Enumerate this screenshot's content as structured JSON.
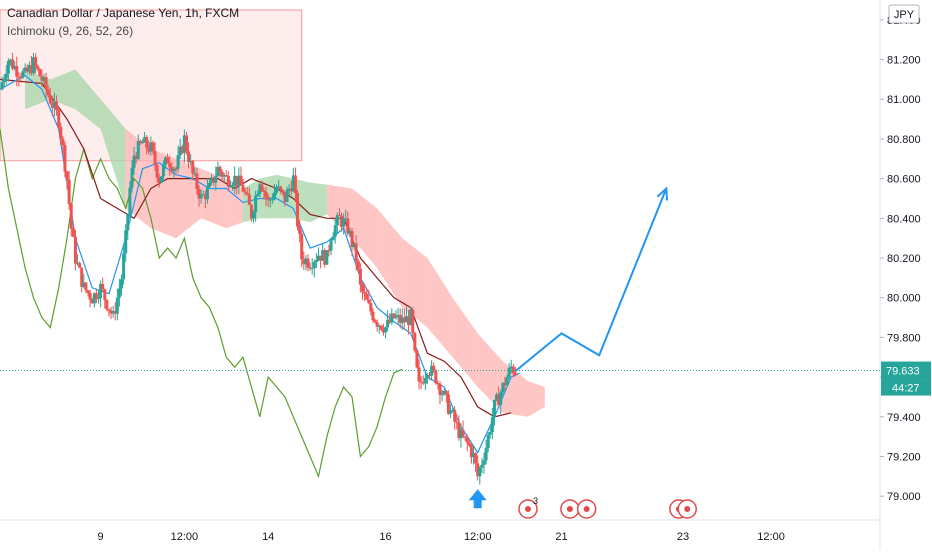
{
  "header": {
    "title": "Canadian Dollar / Japanese Yen, 1h, FXCM",
    "indicator": "Ichimoku (9, 26, 52, 26)"
  },
  "colors": {
    "bull": "#26a69a",
    "bear": "#ef5350",
    "tenkan": "#2196f3",
    "kijun": "#8b1a1a",
    "chikou": "#5a9e2f",
    "cloud_bull": "#a5d6a7",
    "cloud_bear": "#ffb3b3",
    "projection": "#2196f3",
    "price_tag": "#26a69a"
  },
  "chart_data": {
    "type": "candlestick",
    "currency": "JPY",
    "ylim": [
      78.88,
      81.5
    ],
    "y_ticks": [
      "81.400",
      "81.200",
      "81.000",
      "80.800",
      "80.600",
      "80.400",
      "80.200",
      "80.000",
      "79.800",
      "79.600",
      "79.400",
      "79.200",
      "79.000"
    ],
    "y_tick_values": [
      81.4,
      81.2,
      81.0,
      80.8,
      80.6,
      80.4,
      80.2,
      80.0,
      79.8,
      79.6,
      79.4,
      79.2,
      79.0
    ],
    "x_range": [
      0,
      210
    ],
    "x_ticks": [
      {
        "label": "9",
        "x": 24
      },
      {
        "label": "12:00",
        "x": 44
      },
      {
        "label": "14",
        "x": 64
      },
      {
        "label": "16",
        "x": 92
      },
      {
        "label": "12:00",
        "x": 114
      },
      {
        "label": "21",
        "x": 134
      },
      {
        "label": "23",
        "x": 163
      },
      {
        "label": "12:00",
        "x": 184
      }
    ],
    "last_price": "79.633",
    "last_price_value": 79.633,
    "countdown": "44:27",
    "price_path": [
      [
        0,
        81.05
      ],
      [
        2,
        81.2
      ],
      [
        4,
        81.15
      ],
      [
        6,
        81.12
      ],
      [
        8,
        81.18
      ],
      [
        10,
        81.1
      ],
      [
        12,
        81.0
      ],
      [
        14,
        80.9
      ],
      [
        16,
        80.6
      ],
      [
        17,
        80.35
      ],
      [
        18,
        80.2
      ],
      [
        20,
        80.05
      ],
      [
        22,
        80.0
      ],
      [
        24,
        80.05
      ],
      [
        26,
        79.95
      ],
      [
        27,
        79.9
      ],
      [
        29,
        80.1
      ],
      [
        30,
        80.3
      ],
      [
        31,
        80.55
      ],
      [
        32,
        80.72
      ],
      [
        34,
        80.78
      ],
      [
        36,
        80.75
      ],
      [
        38,
        80.6
      ],
      [
        40,
        80.7
      ],
      [
        42,
        80.65
      ],
      [
        44,
        80.8
      ],
      [
        46,
        80.62
      ],
      [
        48,
        80.5
      ],
      [
        50,
        80.55
      ],
      [
        52,
        80.65
      ],
      [
        54,
        80.6
      ],
      [
        56,
        80.6
      ],
      [
        58,
        80.55
      ],
      [
        60,
        80.42
      ],
      [
        62,
        80.6
      ],
      [
        64,
        80.48
      ],
      [
        66,
        80.55
      ],
      [
        68,
        80.5
      ],
      [
        70,
        80.6
      ],
      [
        71,
        80.38
      ],
      [
        72,
        80.2
      ],
      [
        74,
        80.18
      ],
      [
        76,
        80.22
      ],
      [
        78,
        80.2
      ],
      [
        79,
        80.32
      ],
      [
        81,
        80.4
      ],
      [
        83,
        80.35
      ],
      [
        85,
        80.2
      ],
      [
        86,
        80.05
      ],
      [
        88,
        79.95
      ],
      [
        90,
        79.88
      ],
      [
        92,
        79.85
      ],
      [
        94,
        79.9
      ],
      [
        96,
        79.88
      ],
      [
        98,
        79.9
      ],
      [
        99,
        79.7
      ],
      [
        100,
        79.55
      ],
      [
        102,
        79.65
      ],
      [
        104,
        79.6
      ],
      [
        106,
        79.5
      ],
      [
        108,
        79.4
      ],
      [
        110,
        79.3
      ],
      [
        112,
        79.25
      ],
      [
        113,
        79.2
      ],
      [
        114,
        79.1
      ],
      [
        116,
        79.25
      ],
      [
        117,
        79.35
      ],
      [
        118,
        79.45
      ],
      [
        120,
        79.55
      ],
      [
        122,
        79.65
      ],
      [
        123,
        79.63
      ]
    ],
    "tenkan": [
      [
        0,
        81.05
      ],
      [
        6,
        81.12
      ],
      [
        10,
        81.05
      ],
      [
        14,
        80.85
      ],
      [
        18,
        80.3
      ],
      [
        22,
        80.05
      ],
      [
        26,
        80.02
      ],
      [
        30,
        80.3
      ],
      [
        34,
        80.65
      ],
      [
        38,
        80.68
      ],
      [
        42,
        80.62
      ],
      [
        46,
        80.6
      ],
      [
        50,
        80.55
      ],
      [
        54,
        80.55
      ],
      [
        58,
        80.48
      ],
      [
        62,
        80.5
      ],
      [
        66,
        80.5
      ],
      [
        70,
        80.45
      ],
      [
        74,
        80.25
      ],
      [
        78,
        80.28
      ],
      [
        82,
        80.35
      ],
      [
        86,
        80.1
      ],
      [
        90,
        79.95
      ],
      [
        94,
        79.88
      ],
      [
        98,
        79.82
      ],
      [
        102,
        79.6
      ],
      [
        106,
        79.55
      ],
      [
        110,
        79.35
      ],
      [
        114,
        79.22
      ],
      [
        118,
        79.4
      ],
      [
        122,
        79.6
      ],
      [
        124,
        79.62
      ]
    ],
    "kijun": [
      [
        0,
        81.1
      ],
      [
        10,
        81.08
      ],
      [
        16,
        80.9
      ],
      [
        20,
        80.75
      ],
      [
        24,
        80.5
      ],
      [
        28,
        80.45
      ],
      [
        32,
        80.4
      ],
      [
        36,
        80.55
      ],
      [
        40,
        80.6
      ],
      [
        46,
        80.6
      ],
      [
        52,
        80.6
      ],
      [
        56,
        80.55
      ],
      [
        60,
        80.6
      ],
      [
        66,
        80.55
      ],
      [
        70,
        80.5
      ],
      [
        74,
        80.42
      ],
      [
        78,
        80.4
      ],
      [
        82,
        80.4
      ],
      [
        86,
        80.2
      ],
      [
        90,
        80.1
      ],
      [
        94,
        80.0
      ],
      [
        98,
        79.95
      ],
      [
        102,
        79.72
      ],
      [
        106,
        79.68
      ],
      [
        110,
        79.6
      ],
      [
        114,
        79.45
      ],
      [
        118,
        79.4
      ],
      [
        122,
        79.42
      ]
    ],
    "chikou": [
      [
        0,
        80.85
      ],
      [
        2,
        80.55
      ],
      [
        4,
        80.35
      ],
      [
        6,
        80.15
      ],
      [
        8,
        80.0
      ],
      [
        10,
        79.9
      ],
      [
        12,
        79.85
      ],
      [
        14,
        80.05
      ],
      [
        16,
        80.3
      ],
      [
        18,
        80.6
      ],
      [
        20,
        80.75
      ],
      [
        22,
        80.6
      ],
      [
        24,
        80.7
      ],
      [
        26,
        80.6
      ],
      [
        28,
        80.55
      ],
      [
        30,
        80.45
      ],
      [
        32,
        80.6
      ],
      [
        34,
        80.55
      ],
      [
        36,
        80.4
      ],
      [
        38,
        80.2
      ],
      [
        40,
        80.25
      ],
      [
        42,
        80.2
      ],
      [
        44,
        80.3
      ],
      [
        46,
        80.1
      ],
      [
        48,
        80.0
      ],
      [
        50,
        79.95
      ],
      [
        52,
        79.85
      ],
      [
        54,
        79.7
      ],
      [
        56,
        79.65
      ],
      [
        58,
        79.7
      ],
      [
        60,
        79.55
      ],
      [
        62,
        79.4
      ],
      [
        64,
        79.6
      ],
      [
        66,
        79.55
      ],
      [
        68,
        79.5
      ],
      [
        70,
        79.4
      ],
      [
        72,
        79.3
      ],
      [
        74,
        79.2
      ],
      [
        76,
        79.1
      ],
      [
        78,
        79.3
      ],
      [
        80,
        79.45
      ],
      [
        82,
        79.55
      ],
      [
        84,
        79.5
      ],
      [
        86,
        79.2
      ],
      [
        88,
        79.25
      ],
      [
        90,
        79.35
      ],
      [
        92,
        79.5
      ],
      [
        94,
        79.62
      ],
      [
        96,
        79.64
      ]
    ],
    "cloud_a": [
      [
        6,
        81.15
      ],
      [
        12,
        81.1
      ],
      [
        18,
        81.15
      ],
      [
        24,
        81.0
      ],
      [
        30,
        80.85
      ],
      [
        36,
        80.75
      ],
      [
        42,
        80.7
      ],
      [
        48,
        80.65
      ],
      [
        54,
        80.6
      ],
      [
        58,
        80.55
      ],
      [
        62,
        80.6
      ],
      [
        66,
        80.62
      ],
      [
        70,
        80.6
      ],
      [
        74,
        80.58
      ],
      [
        78,
        80.57
      ],
      [
        84,
        80.55
      ],
      [
        90,
        80.45
      ],
      [
        96,
        80.3
      ],
      [
        102,
        80.2
      ],
      [
        108,
        80.0
      ],
      [
        114,
        79.82
      ],
      [
        120,
        79.68
      ],
      [
        126,
        79.58
      ],
      [
        130,
        79.55
      ]
    ],
    "cloud_b": [
      [
        6,
        80.95
      ],
      [
        12,
        81.0
      ],
      [
        18,
        80.95
      ],
      [
        24,
        80.85
      ],
      [
        30,
        80.45
      ],
      [
        36,
        80.35
      ],
      [
        42,
        80.3
      ],
      [
        48,
        80.4
      ],
      [
        54,
        80.35
      ],
      [
        58,
        80.38
      ],
      [
        62,
        80.4
      ],
      [
        66,
        80.4
      ],
      [
        70,
        80.4
      ],
      [
        74,
        80.38
      ],
      [
        78,
        80.42
      ],
      [
        84,
        80.3
      ],
      [
        90,
        80.15
      ],
      [
        96,
        79.95
      ],
      [
        102,
        79.85
      ],
      [
        108,
        79.7
      ],
      [
        114,
        79.55
      ],
      [
        120,
        79.42
      ],
      [
        126,
        79.4
      ],
      [
        130,
        79.45
      ]
    ],
    "highlight_zone": {
      "x": [
        0,
        72
      ],
      "y": [
        80.69,
        81.45
      ]
    },
    "projection": [
      [
        123,
        79.63
      ],
      [
        134,
        79.82
      ],
      [
        143,
        79.71
      ],
      [
        159,
        80.55
      ]
    ],
    "arrow_up_at": {
      "x": 114,
      "y": 79.02
    },
    "events": [
      {
        "x": 126,
        "label": "3"
      },
      {
        "x": 136,
        "label": ""
      },
      {
        "x": 140,
        "label": ""
      },
      {
        "x": 162,
        "label": ""
      },
      {
        "x": 164,
        "label": ""
      }
    ]
  }
}
